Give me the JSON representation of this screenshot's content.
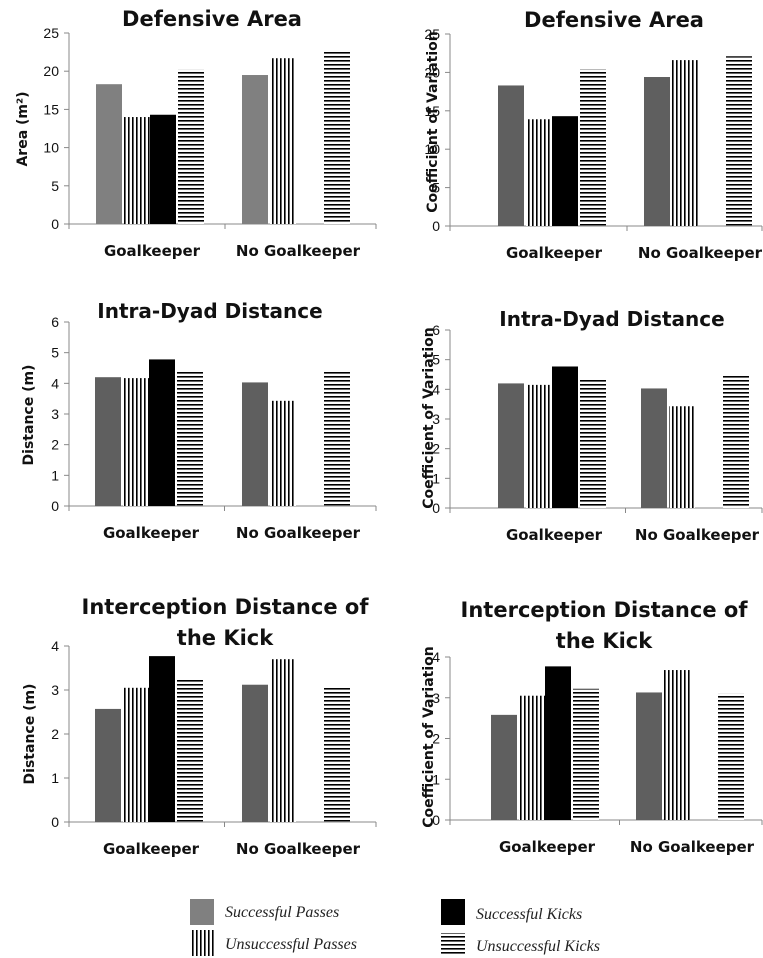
{
  "chart_data": [
    {
      "type": "bar",
      "title": "Defensive Area",
      "ylabel": "Area (m²)",
      "categories": [
        "Goalkeeper",
        "No Goalkeeper"
      ],
      "ylim": [
        0,
        25
      ],
      "yticks": [
        0,
        5,
        10,
        15,
        20,
        25
      ],
      "series": [
        {
          "name": "Successful Passes",
          "values": [
            18.3,
            19.5
          ]
        },
        {
          "name": "Unsuccessful Passes",
          "values": [
            14.0,
            21.7
          ]
        },
        {
          "name": "Successful Kicks",
          "values": [
            14.3,
            null
          ]
        },
        {
          "name": "Unsuccessful Kicks",
          "values": [
            20.2,
            22.6
          ]
        }
      ]
    },
    {
      "type": "bar",
      "title": "Defensive Area",
      "ylabel": "Coefficient of Variation",
      "categories": [
        "Goalkeeper",
        "No Goalkeeper"
      ],
      "ylim": [
        0,
        25
      ],
      "yticks": [
        0,
        5,
        10,
        15,
        20,
        25
      ],
      "series": [
        {
          "name": "Successful Passes",
          "values": [
            18.3,
            19.4
          ]
        },
        {
          "name": "Unsuccessful Passes",
          "values": [
            13.9,
            21.6
          ]
        },
        {
          "name": "Successful Kicks",
          "values": [
            14.3,
            null
          ]
        },
        {
          "name": "Unsuccessful Kicks",
          "values": [
            20.4,
            22.1
          ]
        }
      ]
    },
    {
      "type": "bar",
      "title": "Intra-Dyad Distance",
      "ylabel": "Distance (m)",
      "categories": [
        "Goalkeeper",
        "No Goalkeeper"
      ],
      "ylim": [
        0,
        6
      ],
      "yticks": [
        0,
        1,
        2,
        3,
        4,
        5,
        6
      ],
      "series": [
        {
          "name": "Successful Passes",
          "values": [
            4.2,
            4.03
          ]
        },
        {
          "name": "Unsuccessful Passes",
          "values": [
            4.17,
            3.43
          ]
        },
        {
          "name": "Successful Kicks",
          "values": [
            4.78,
            null
          ]
        },
        {
          "name": "Unsuccessful Kicks",
          "values": [
            4.38,
            4.4
          ]
        }
      ]
    },
    {
      "type": "bar",
      "title": "Intra-Dyad Distance",
      "ylabel": "Coefficient of Variation",
      "categories": [
        "Goalkeeper",
        "No Goalkeeper"
      ],
      "ylim": [
        0,
        6
      ],
      "yticks": [
        0,
        1,
        2,
        3,
        4,
        5,
        6
      ],
      "series": [
        {
          "name": "Successful Passes",
          "values": [
            4.2,
            4.03
          ]
        },
        {
          "name": "Unsuccessful Passes",
          "values": [
            4.15,
            3.43
          ]
        },
        {
          "name": "Successful Kicks",
          "values": [
            4.77,
            null
          ]
        },
        {
          "name": "Unsuccessful Kicks",
          "values": [
            4.33,
            4.45
          ]
        }
      ]
    },
    {
      "type": "bar",
      "title": "Interception Distance of the Kick",
      "ylabel": "Distance (m)",
      "categories": [
        "Goalkeeper",
        "No Goalkeeper"
      ],
      "ylim": [
        0,
        4
      ],
      "yticks": [
        0,
        1,
        2,
        3,
        4
      ],
      "series": [
        {
          "name": "Successful Passes",
          "values": [
            2.57,
            3.12
          ]
        },
        {
          "name": "Unsuccessful Passes",
          "values": [
            3.05,
            3.7
          ]
        },
        {
          "name": "Successful Kicks",
          "values": [
            3.77,
            null
          ]
        },
        {
          "name": "Unsuccessful Kicks",
          "values": [
            3.23,
            3.05
          ]
        }
      ]
    },
    {
      "type": "bar",
      "title": "Interception Distance of the Kick",
      "ylabel": "Coefficient of Variation",
      "categories": [
        "Goalkeeper",
        "No Goalkeeper"
      ],
      "ylim": [
        0,
        4
      ],
      "yticks": [
        0,
        1,
        2,
        3,
        4
      ],
      "series": [
        {
          "name": "Successful Passes",
          "values": [
            2.58,
            3.13
          ]
        },
        {
          "name": "Unsuccessful Passes",
          "values": [
            3.05,
            3.68
          ]
        },
        {
          "name": "Successful Kicks",
          "values": [
            3.77,
            null
          ]
        },
        {
          "name": "Unsuccessful Kicks",
          "values": [
            3.22,
            3.1
          ]
        }
      ]
    }
  ],
  "legend": {
    "items": [
      {
        "label": "Successful Passes",
        "style": "solid-gray"
      },
      {
        "label": "Successful Kicks",
        "style": "solid-black"
      },
      {
        "label": "Unsuccessful Passes",
        "style": "vertical-stripes"
      },
      {
        "label": "Unsuccessful Kicks",
        "style": "horizontal-stripes"
      }
    ]
  },
  "colors": {
    "successful_passes_first": "#808080",
    "successful_passes": "#5f5f5f",
    "successful_kicks": "#000000",
    "stripes": "#000000"
  }
}
